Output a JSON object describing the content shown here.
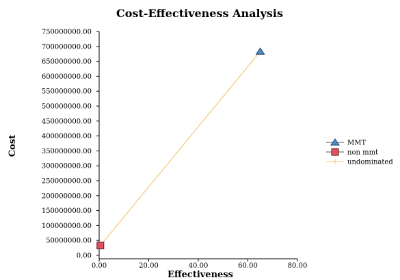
{
  "chart_data": {
    "type": "scatter",
    "title": "Cost-Effectiveness Analysis",
    "xlabel": "Effectiveness",
    "ylabel": "Cost",
    "xlim": [
      0,
      80
    ],
    "ylim": [
      0,
      750000000
    ],
    "x_ticks": [
      "0.00",
      "20.00",
      "40.00",
      "60.00",
      "80.00"
    ],
    "x_tick_values": [
      0,
      20,
      40,
      60,
      80
    ],
    "y_ticks": [
      "0.00",
      "50000000.00",
      "100000000.00",
      "150000000.00",
      "200000000.00",
      "250000000.00",
      "300000000.00",
      "350000000.00",
      "400000000.00",
      "450000000.00",
      "500000000.00",
      "550000000.00",
      "600000000.00",
      "650000000.00",
      "700000000.00",
      "750000000.00"
    ],
    "y_tick_values": [
      0,
      50000000,
      100000000,
      150000000,
      200000000,
      250000000,
      300000000,
      350000000,
      400000000,
      450000000,
      500000000,
      550000000,
      600000000,
      650000000,
      700000000,
      750000000
    ],
    "grid": false,
    "legend_position": "right",
    "series": [
      {
        "name": "MMT",
        "marker": "triangle",
        "color": "#4a90c8",
        "points": [
          {
            "x": 65,
            "y": 683000000
          }
        ]
      },
      {
        "name": "non mmt",
        "marker": "square",
        "color": "#e0505f",
        "points": [
          {
            "x": 0.5,
            "y": 33000000
          }
        ]
      },
      {
        "name": "undominated",
        "marker": "line",
        "color": "#f5c57a",
        "points": [
          {
            "x": 0.5,
            "y": 33000000
          },
          {
            "x": 65,
            "y": 683000000
          }
        ]
      }
    ]
  }
}
